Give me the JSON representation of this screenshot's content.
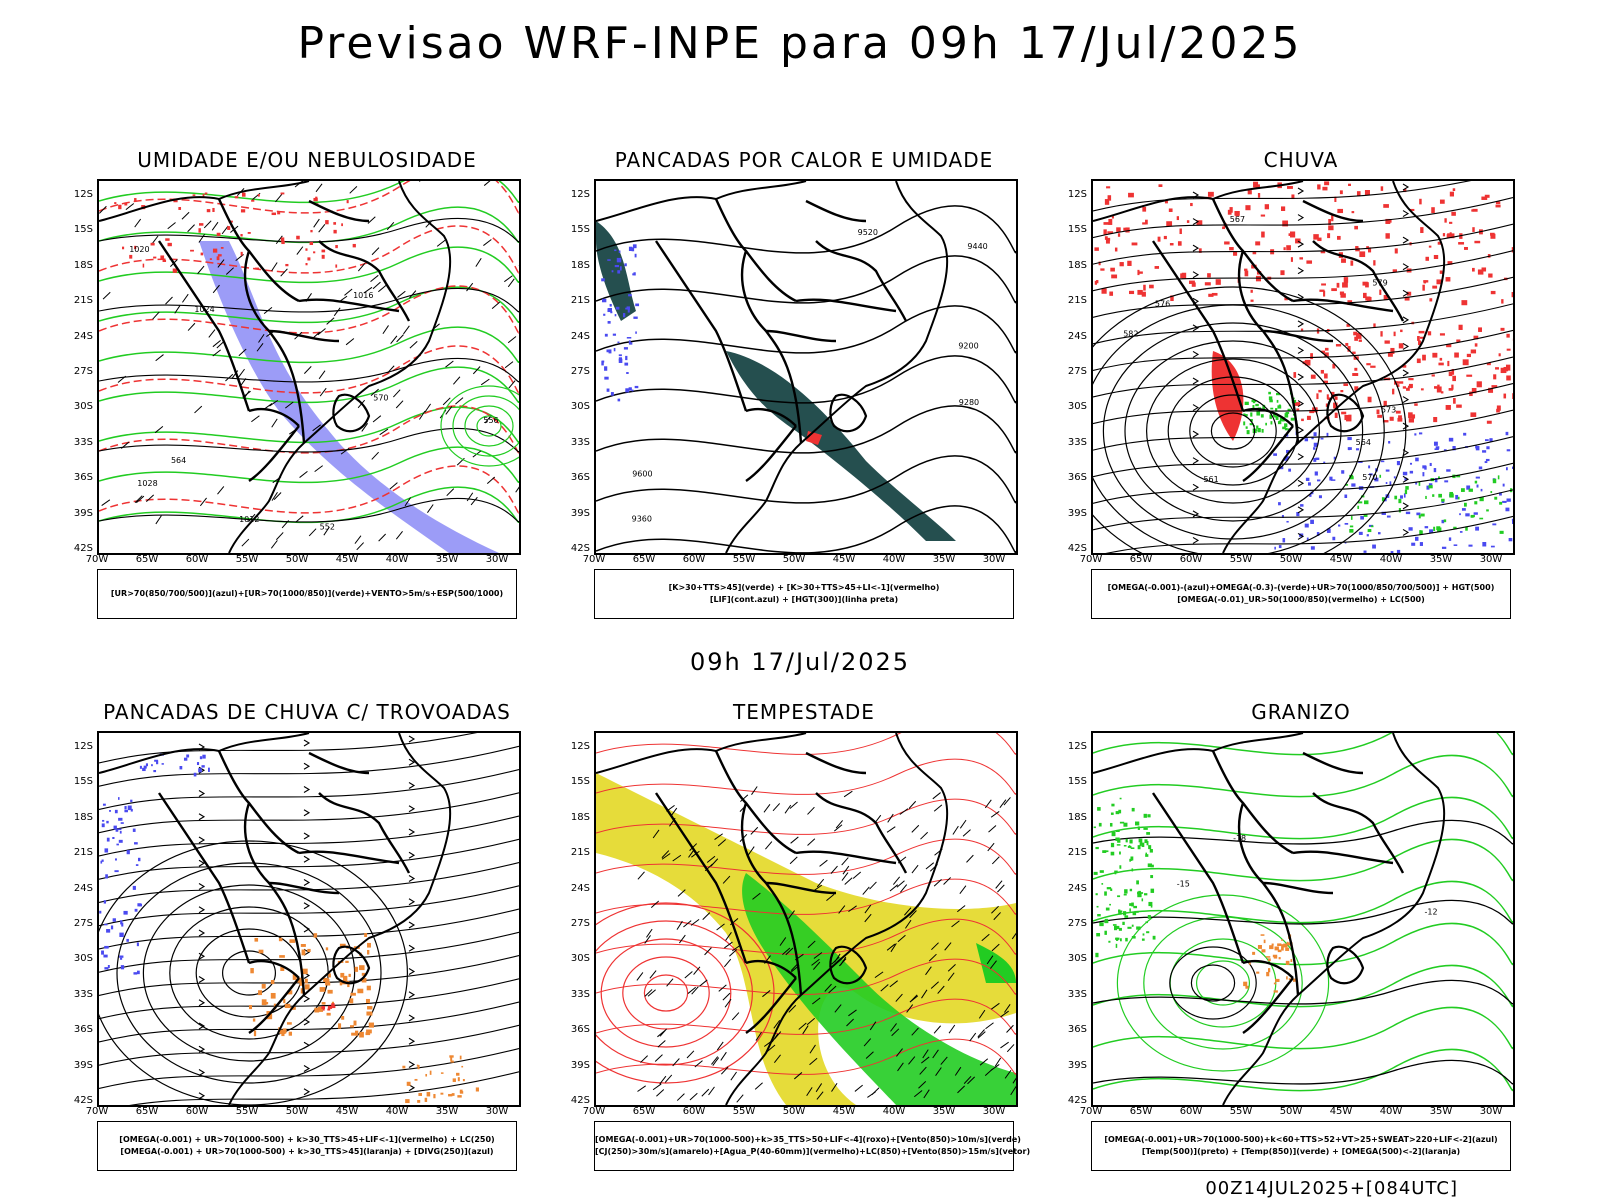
{
  "header": {
    "title": "Previsao WRF-INPE  para 09h 17/Jul/2025",
    "mid_title": "09h 17/Jul/2025",
    "footer": "00Z14JUL2025+[084UTC]"
  },
  "axes": {
    "lat_labels": [
      "12S",
      "15S",
      "18S",
      "21S",
      "24S",
      "27S",
      "30S",
      "33S",
      "36S",
      "39S",
      "42S"
    ],
    "lon_labels": [
      "70W",
      "65W",
      "60W",
      "55W",
      "50W",
      "45W",
      "40W",
      "35W",
      "30W"
    ]
  },
  "colors": {
    "blue": "#4a4af0",
    "green": "#22cc22",
    "red": "#ee3333",
    "dark_teal": "#254f4f",
    "yellow": "#e6dc3a",
    "orange": "#ee8833",
    "black": "#000000"
  },
  "panels": [
    {
      "id": "umidade",
      "title": "UMIDADE E/OU NEBULOSIDADE",
      "legend": [
        "[UR>70(850/700/500)](azul)+[UR>70(1000/850)](verde)+VENTO>5m/s+ESP(500/1000)"
      ],
      "contour_labels": [
        "1020",
        "1024",
        "1028",
        "1016",
        "1012",
        "552",
        "556",
        "564",
        "570"
      ]
    },
    {
      "id": "pancadas_calor",
      "title": "PANCADAS POR CALOR E UMIDADE",
      "legend": [
        "[K>30+TTS>45](verde) + [K>30+TTS>45+LI<-1](vermelho)",
        "[LIF](cont.azul) + [HGT(300)](linha preta)"
      ],
      "contour_labels": [
        "9600",
        "9520",
        "9440",
        "9360",
        "9280",
        "9200"
      ]
    },
    {
      "id": "chuva",
      "title": "CHUVA",
      "legend": [
        "[OMEGA(-0.001)-(azul)+OMEGA(-0.3)-(verde)+UR>70(1000/850/700/500)] + HGT(500)",
        "[OMEGA(-0.01)_UR>50(1000/850)(vermelho) + LC(500)"
      ],
      "contour_labels": [
        "582",
        "579",
        "576",
        "573",
        "570",
        "567",
        "564",
        "561"
      ]
    },
    {
      "id": "trovoadas",
      "title": "PANCADAS DE CHUVA C/ TROVOADAS",
      "legend": [
        "[OMEGA(-0.001) + UR>70(1000-500) + k>30_TTS>45+LIF<-1](vermelho) + LC(250)",
        "[OMEGA(-0.001) + UR>70(1000-500) + k>30_TTS>45](laranja) + [DIVG(250)](azul)"
      ],
      "contour_labels": []
    },
    {
      "id": "tempestade",
      "title": "TEMPESTADE",
      "legend": [
        "[OMEGA(-0.001)+UR>70(1000-500)+k>35_TTS>50+LIF<-4](roxo)+[Vento(850)>10m/s](verde)",
        "[CJ(250)>30m/s](amarelo)+[Agua_P(40-60mm)](vermelho)+LC(850)+[Vento(850)>15m/s](vetor)"
      ],
      "contour_labels": []
    },
    {
      "id": "granizo",
      "title": "GRANIZO",
      "legend": [
        "[OMEGA(-0.001)+UR>70(1000-500)+k<60+TTS>52+VT>25+SWEAT>220+LIF<-2](azul)",
        "[Temp(500)](preto) + [Temp(850)](verde) + [OMEGA(500)<-2](laranja)"
      ],
      "contour_labels": [
        "-18",
        "-15",
        "-12"
      ]
    }
  ]
}
